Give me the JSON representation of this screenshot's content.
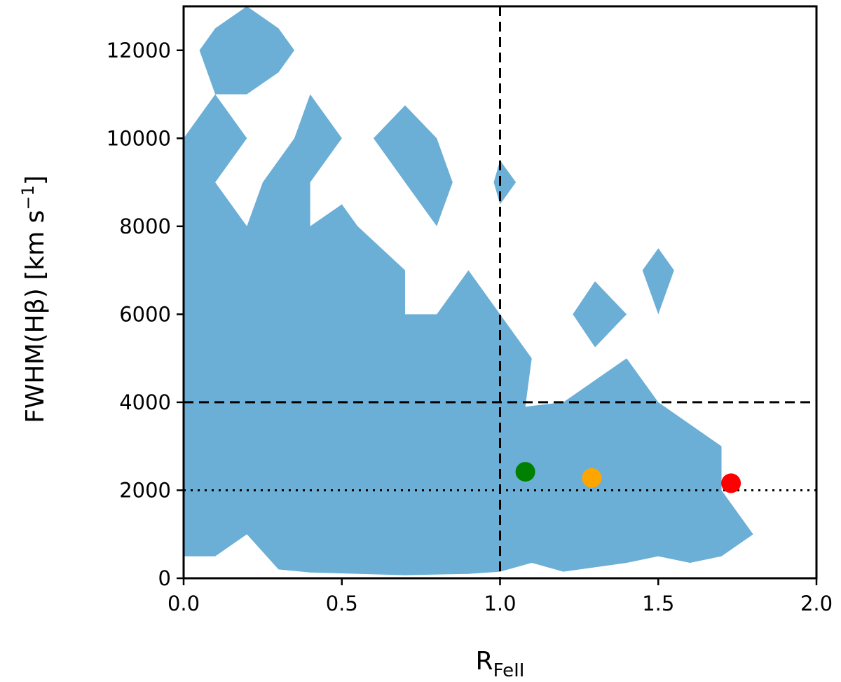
{
  "chart_data": {
    "type": "scatter",
    "xlabel": {
      "main": "R",
      "sub": "FeII"
    },
    "ylabel": {
      "main": "FWHM(Hβ) [km s",
      "sup": "−1",
      "end": "]"
    },
    "xlim": [
      0,
      2
    ],
    "ylim": [
      0,
      13000
    ],
    "xticks": [
      {
        "value": 0,
        "label": "0.0"
      },
      {
        "value": 0.5,
        "label": "0.5"
      },
      {
        "value": 1,
        "label": "1.0"
      },
      {
        "value": 1.5,
        "label": "1.5"
      },
      {
        "value": 2,
        "label": "2.0"
      }
    ],
    "yticks": [
      {
        "value": 0,
        "label": "0"
      },
      {
        "value": 2000,
        "label": "2000"
      },
      {
        "value": 4000,
        "label": "4000"
      },
      {
        "value": 6000,
        "label": "6000"
      },
      {
        "value": 8000,
        "label": "8000"
      },
      {
        "value": 10000,
        "label": "10000"
      },
      {
        "value": 12000,
        "label": "12000"
      }
    ],
    "grid": false,
    "density_region": {
      "color": "#6baed6",
      "polygons": [
        [
          [
            0,
            10000
          ],
          [
            0.1,
            11000
          ],
          [
            0.2,
            10000
          ],
          [
            0.1,
            9000
          ],
          [
            0.2,
            8000
          ],
          [
            0.25,
            9000
          ],
          [
            0.35,
            10000
          ],
          [
            0.4,
            11000
          ],
          [
            0.5,
            10000
          ],
          [
            0.4,
            9000
          ],
          [
            0.4,
            8000
          ],
          [
            0.5,
            8500
          ],
          [
            0.55,
            8000
          ],
          [
            0.7,
            7000
          ],
          [
            0.7,
            6000
          ],
          [
            0.8,
            6000
          ],
          [
            0.9,
            7000
          ],
          [
            1.0,
            6000
          ],
          [
            1.1,
            5000
          ],
          [
            1.08,
            3900
          ],
          [
            1.2,
            4000
          ],
          [
            1.4,
            5000
          ],
          [
            1.5,
            4000
          ],
          [
            1.7,
            3000
          ],
          [
            1.7,
            2000
          ],
          [
            1.8,
            1000
          ],
          [
            1.7,
            500
          ],
          [
            1.6,
            350
          ],
          [
            1.5,
            500
          ],
          [
            1.4,
            350
          ],
          [
            1.2,
            150
          ],
          [
            1.1,
            350
          ],
          [
            1.0,
            150
          ],
          [
            0.9,
            100
          ],
          [
            0.7,
            70
          ],
          [
            0.4,
            130
          ],
          [
            0.3,
            200
          ],
          [
            0.2,
            1000
          ],
          [
            0.1,
            500
          ],
          [
            0,
            500
          ]
        ],
        [
          [
            0.05,
            12000
          ],
          [
            0.1,
            12500
          ],
          [
            0.2,
            13000
          ],
          [
            0.3,
            12500
          ],
          [
            0.35,
            12000
          ],
          [
            0.3,
            11500
          ],
          [
            0.2,
            11000
          ],
          [
            0.1,
            11000
          ]
        ],
        [
          [
            0.6,
            10000
          ],
          [
            0.7,
            10750
          ],
          [
            0.8,
            10000
          ],
          [
            0.85,
            9000
          ],
          [
            0.8,
            8000
          ],
          [
            0.7,
            9000
          ]
        ],
        [
          [
            0.98,
            9000
          ],
          [
            1.0,
            9500
          ],
          [
            1.05,
            9000
          ],
          [
            1.0,
            8500
          ]
        ],
        [
          [
            1.23,
            6000
          ],
          [
            1.3,
            6750
          ],
          [
            1.4,
            6000
          ],
          [
            1.3,
            5250
          ]
        ],
        [
          [
            1.45,
            7000
          ],
          [
            1.5,
            7500
          ],
          [
            1.55,
            7000
          ],
          [
            1.5,
            6000
          ]
        ]
      ]
    },
    "reference_lines": [
      {
        "orientation": "vertical",
        "value": 1.0,
        "style": "dashed"
      },
      {
        "orientation": "horizontal",
        "value": 4000,
        "style": "dashed"
      },
      {
        "orientation": "horizontal",
        "value": 2000,
        "style": "dotted"
      }
    ],
    "points": [
      {
        "x": 1.08,
        "y": 2420,
        "color": "#008000"
      },
      {
        "x": 1.29,
        "y": 2280,
        "color": "#ffa500"
      },
      {
        "x": 1.73,
        "y": 2160,
        "color": "#ff0000"
      }
    ]
  }
}
